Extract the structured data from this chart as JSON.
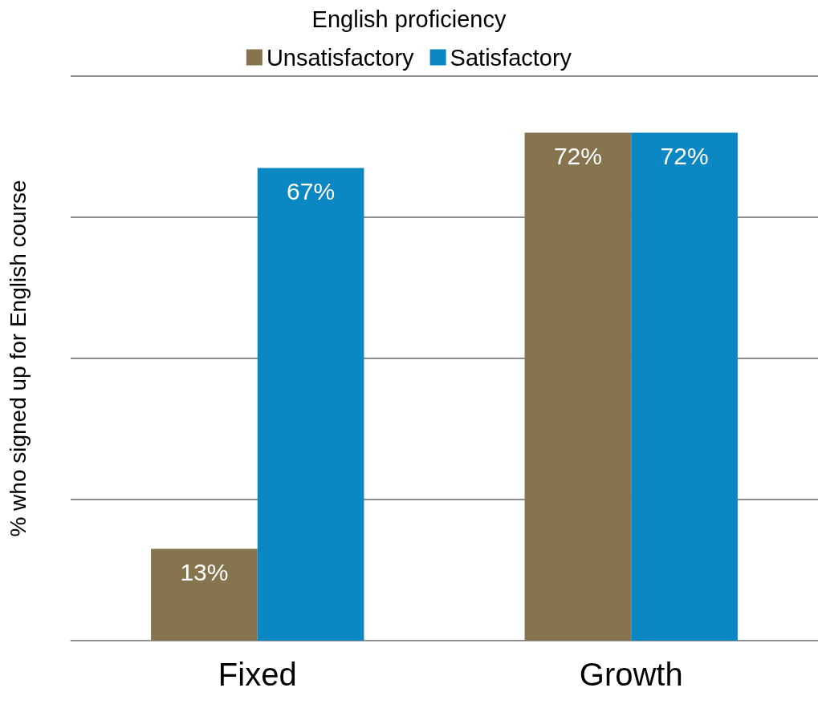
{
  "chart_data": {
    "type": "bar",
    "legend_title": "English proficiency",
    "ylabel": "% who signed up for English course",
    "categories": [
      "Fixed",
      "Growth"
    ],
    "series": [
      {
        "name": "Unsatisfactory",
        "color": "#86744f",
        "values": [
          13,
          72
        ],
        "value_labels": [
          "13%",
          "72%"
        ]
      },
      {
        "name": "Satisfactory",
        "color": "#0b88c4",
        "values": [
          67,
          72
        ],
        "value_labels": [
          "67%",
          "72%"
        ]
      }
    ],
    "ylim": [
      0,
      80
    ],
    "yticks": [
      {
        "value": 0,
        "label": null
      },
      {
        "value": 20,
        "label": null
      },
      {
        "value": 40,
        "label": null
      },
      {
        "value": 60,
        "label": null
      },
      {
        "value": 80,
        "label": null
      }
    ],
    "grid": "y",
    "legend": "top",
    "tick_labels": "x"
  }
}
